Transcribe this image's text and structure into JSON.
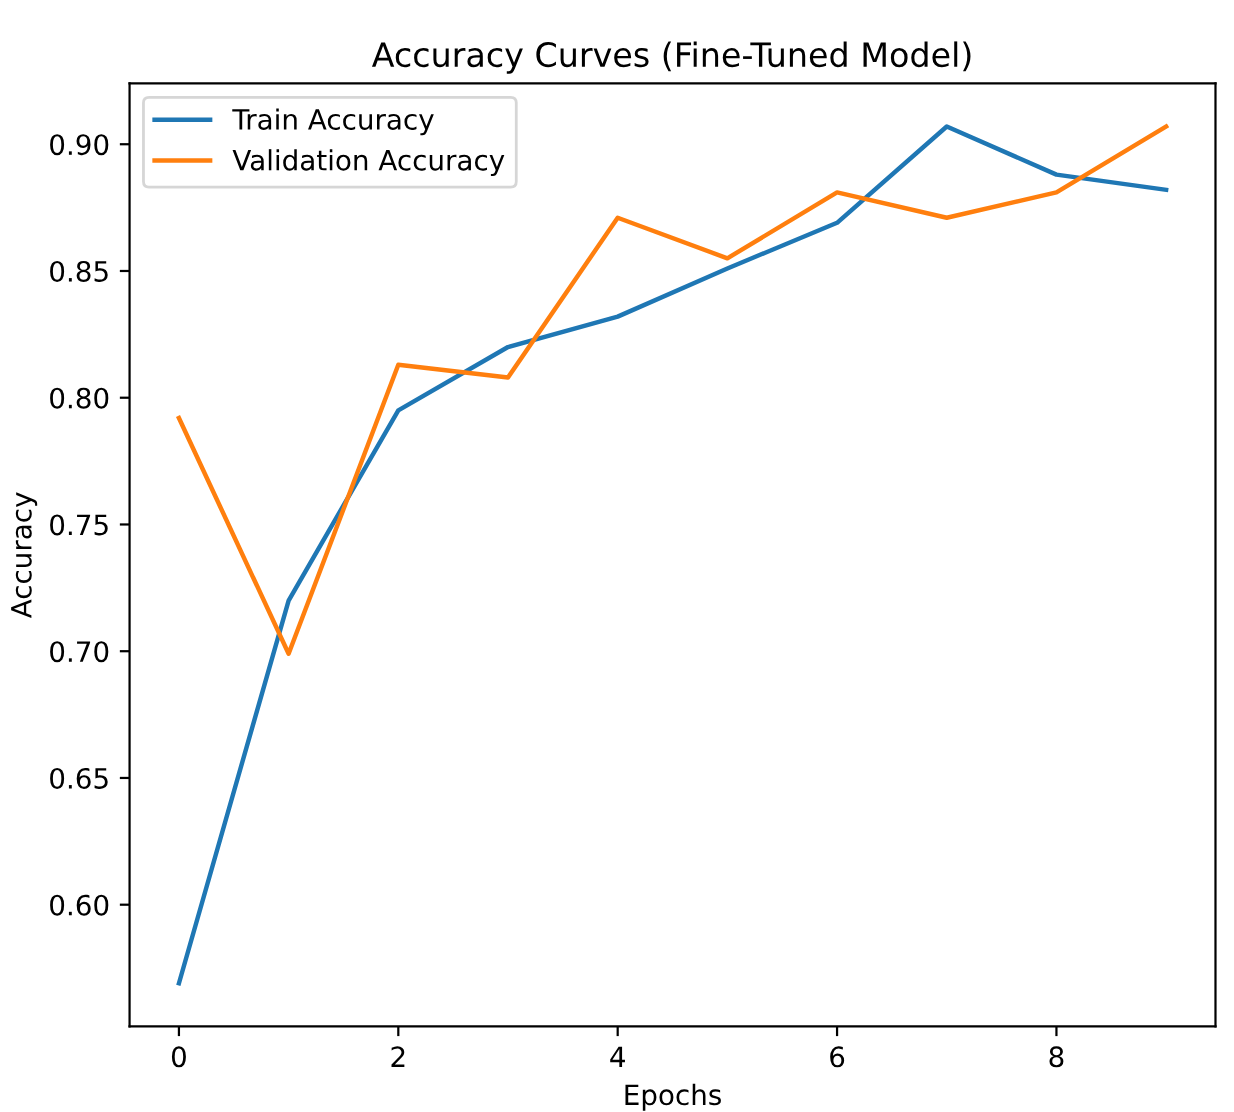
{
  "chart_data": {
    "type": "line",
    "title": "Accuracy Curves (Fine-Tuned Model)",
    "xlabel": "Epochs",
    "ylabel": "Accuracy",
    "x": [
      0,
      1,
      2,
      3,
      4,
      5,
      6,
      7,
      8,
      9
    ],
    "series": [
      {
        "name": "Train Accuracy",
        "color": "#1f77b4",
        "values": [
          0.569,
          0.72,
          0.795,
          0.82,
          0.832,
          0.851,
          0.869,
          0.907,
          0.888,
          0.882
        ]
      },
      {
        "name": "Validation Accuracy",
        "color": "#ff7f0e",
        "values": [
          0.792,
          0.699,
          0.813,
          0.808,
          0.871,
          0.855,
          0.881,
          0.871,
          0.881,
          0.907
        ]
      }
    ],
    "xlim": [
      -0.45,
      9.45
    ],
    "ylim": [
      0.552,
      0.924
    ],
    "xticks": [
      0,
      2,
      4,
      6,
      8
    ],
    "yticks": [
      {
        "value": 0.6,
        "label": "0.60"
      },
      {
        "value": 0.65,
        "label": "0.65"
      },
      {
        "value": 0.7,
        "label": "0.70"
      },
      {
        "value": 0.75,
        "label": "0.75"
      },
      {
        "value": 0.8,
        "label": "0.80"
      },
      {
        "value": 0.85,
        "label": "0.85"
      },
      {
        "value": 0.9,
        "label": "0.90"
      }
    ],
    "grid": false,
    "legend": "upper left",
    "marker": "none",
    "line_style": "solid"
  }
}
